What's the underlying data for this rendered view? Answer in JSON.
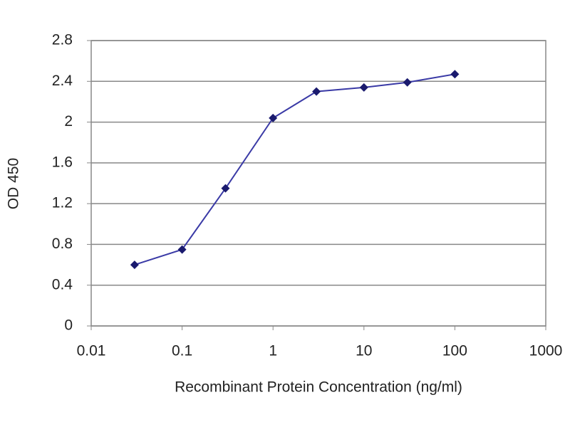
{
  "chart_data": {
    "type": "line",
    "x_label": "Recombinant Protein Concentration (ng/ml)",
    "y_label": "OD 450",
    "x": [
      0.03,
      0.1,
      0.3,
      1,
      3,
      10,
      30,
      100
    ],
    "values": [
      0.6,
      0.75,
      1.35,
      2.04,
      2.3,
      2.34,
      2.39,
      2.47
    ],
    "color": "#3a3aa6",
    "marker_color": "#1a1a6e",
    "xscale": "log",
    "xlim": [
      0.01,
      1000
    ],
    "xticks": [
      0.01,
      0.1,
      1,
      10,
      100,
      1000
    ],
    "ylim": [
      0,
      2.8
    ],
    "yticks": [
      0,
      0.4,
      0.8,
      1.2,
      1.6,
      2,
      2.4,
      2.8
    ],
    "grid": true
  }
}
